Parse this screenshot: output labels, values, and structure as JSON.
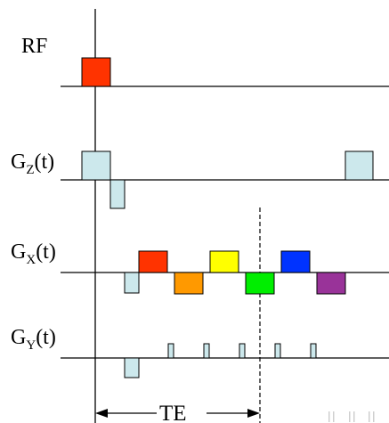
{
  "labels": {
    "rf": "RF",
    "gz_main": "G",
    "gz_sub": "Z",
    "gz_arg": "(t)",
    "gx_main": "G",
    "gx_sub": "X",
    "gx_arg": "(t)",
    "gy_main": "G",
    "gy_sub": "Y",
    "gy_arg": "(t)",
    "te": "TE"
  },
  "colors": {
    "rf_pulse": "#ff3300",
    "gradient_fill": "#cce8ec",
    "gradient_stroke": "#000000",
    "readout_1": "#ff3300",
    "readout_2": "#ff9900",
    "readout_3": "#ffff00",
    "readout_4": "#00ee00",
    "readout_5": "#0033ff",
    "readout_6": "#993399"
  }
}
